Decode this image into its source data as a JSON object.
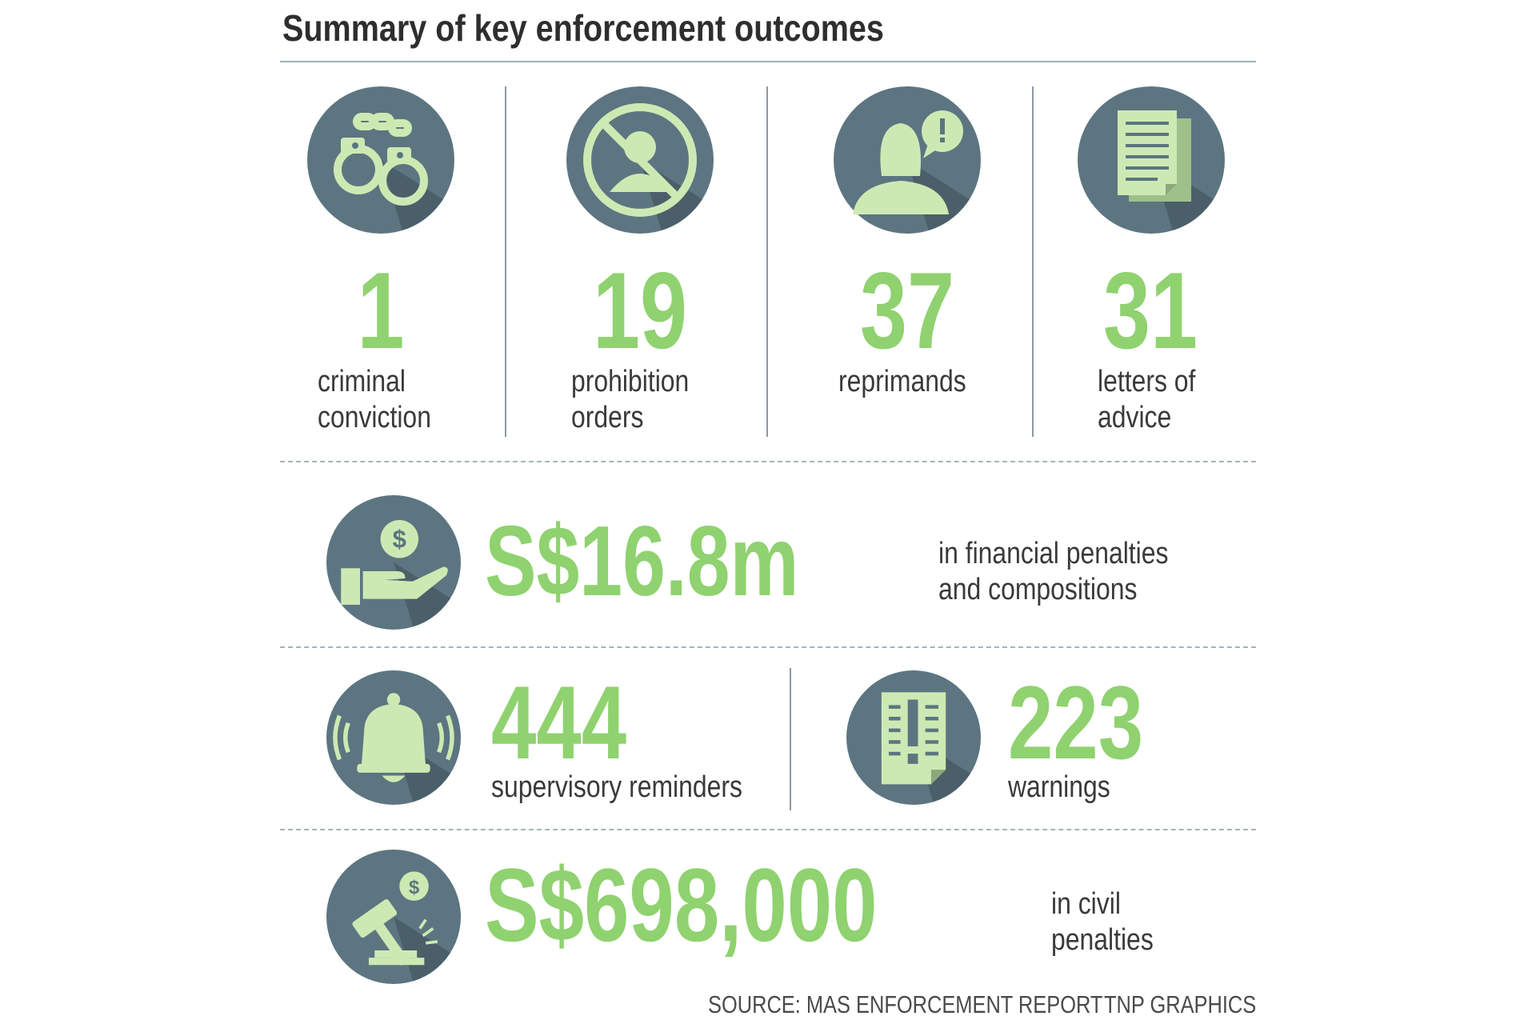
{
  "title": "Summary of key enforcement outcomes",
  "colors": {
    "accent_green": "#8fd26f",
    "icon_circle": "#5c7581",
    "icon_glyph": "#cde9b3",
    "text": "#3a3a3a"
  },
  "stats_row": [
    {
      "icon": "handcuffs-icon",
      "value": "1",
      "label_lines": [
        "criminal",
        "conviction"
      ]
    },
    {
      "icon": "prohibited-person-icon",
      "value": "19",
      "label_lines": [
        "prohibition",
        "orders"
      ]
    },
    {
      "icon": "person-exclamation-icon",
      "value": "37",
      "label_lines": [
        "reprimands"
      ]
    },
    {
      "icon": "documents-icon",
      "value": "31",
      "label_lines": [
        "letters of",
        "advice"
      ]
    }
  ],
  "financial_penalties": {
    "icon": "hand-dollar-coin-icon",
    "value": "S$16.8m",
    "label_lines": [
      "in financial penalties",
      "and compositions"
    ]
  },
  "reminders": {
    "icon": "bell-icon",
    "value": "444",
    "label": "supervisory reminders"
  },
  "warnings": {
    "icon": "warning-document-icon",
    "value": "223",
    "label": "warnings"
  },
  "civil_penalties": {
    "icon": "gavel-dollar-icon",
    "value": "S$698,000",
    "label_lines": [
      "in civil",
      "penalties"
    ]
  },
  "footer": {
    "source": "SOURCE: MAS ENFORCEMENT REPORT",
    "credit": "TNP GRAPHICS"
  }
}
